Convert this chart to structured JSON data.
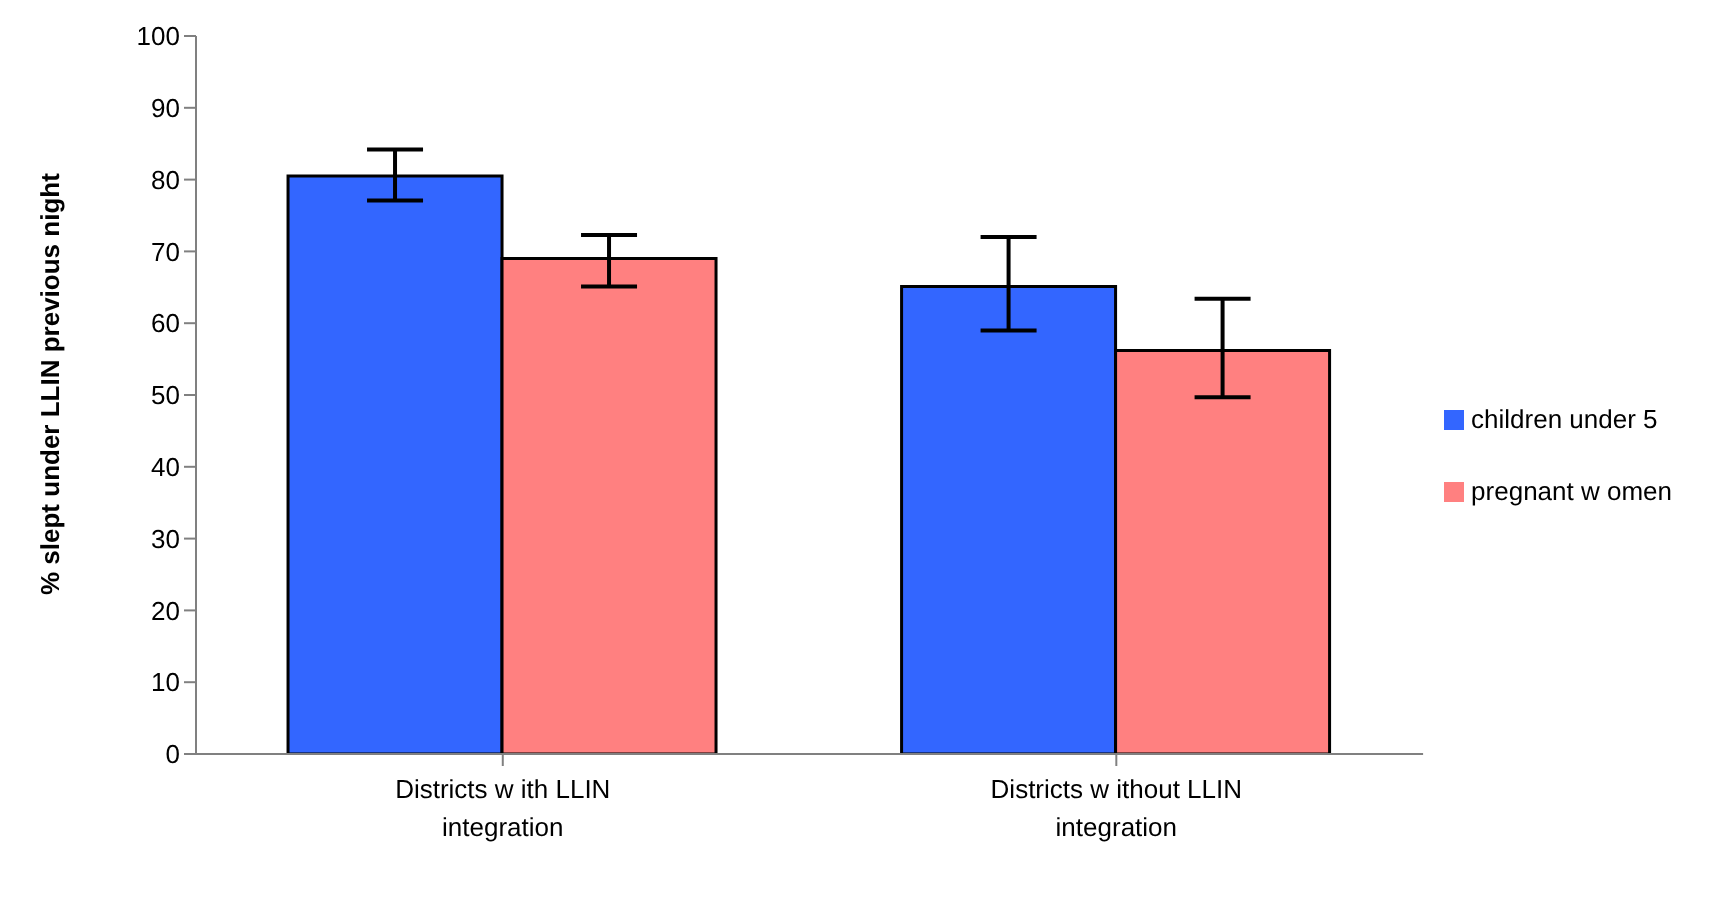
{
  "chart_data": {
    "type": "bar",
    "ylabel": "% slept under LLIN previous night",
    "categories": [
      "Districts w ith LLIN integration",
      "Districts w ithout LLIN integration"
    ],
    "series": [
      {
        "name": "children under 5",
        "color": "#3366ff",
        "values": [
          80.5,
          65.1
        ],
        "errors": [
          [
            77.1,
            84.2
          ],
          [
            59,
            72
          ]
        ]
      },
      {
        "name": "pregnant w omen",
        "color": "#ff8080",
        "values": [
          69,
          56.2
        ],
        "errors": [
          [
            65.1,
            72.3
          ],
          [
            49.7,
            63.4
          ]
        ]
      }
    ],
    "ylim": [
      0,
      100
    ],
    "yticks": [
      0,
      10,
      20,
      30,
      40,
      50,
      60,
      70,
      80,
      90,
      100
    ],
    "grid": false,
    "legend": "right"
  }
}
